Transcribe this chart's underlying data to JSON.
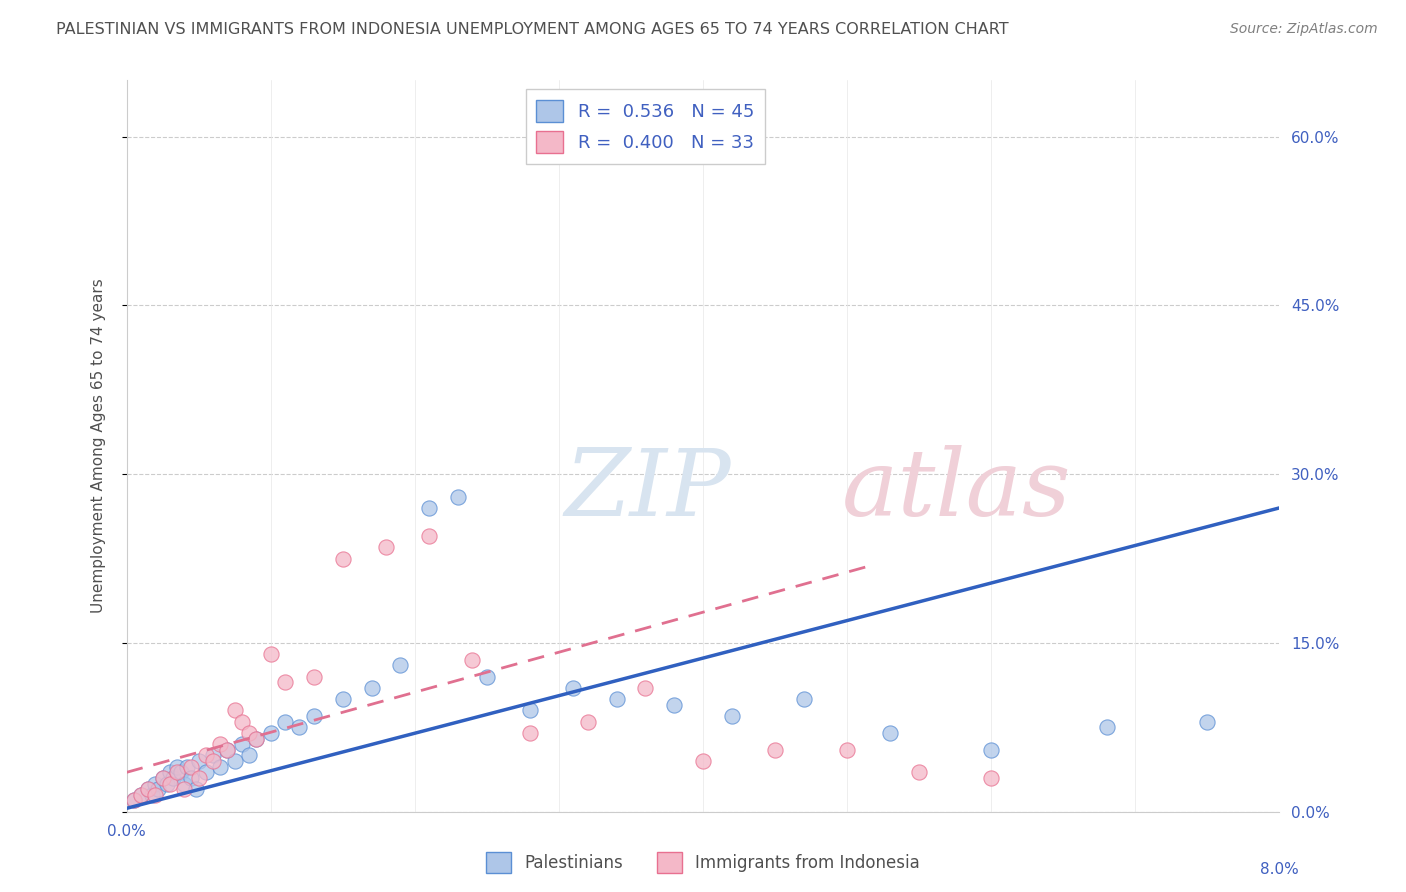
{
  "title": "PALESTINIAN VS IMMIGRANTS FROM INDONESIA UNEMPLOYMENT AMONG AGES 65 TO 74 YEARS CORRELATION CHART",
  "source": "Source: ZipAtlas.com",
  "ylabel": "Unemployment Among Ages 65 to 74 years",
  "y_ticks": [
    "0.0%",
    "15.0%",
    "30.0%",
    "45.0%",
    "60.0%"
  ],
  "y_tick_vals": [
    0.0,
    15.0,
    30.0,
    45.0,
    60.0
  ],
  "x_range": [
    0.0,
    8.0
  ],
  "y_range": [
    0.0,
    65.0
  ],
  "r_blue": 0.536,
  "n_blue": 45,
  "r_pink": 0.4,
  "n_pink": 33,
  "blue_face_color": "#aec6e8",
  "pink_face_color": "#f4b8c8",
  "blue_edge_color": "#5b8fd4",
  "pink_edge_color": "#e87090",
  "blue_line_color": "#3060c0",
  "pink_line_color": "#e07090",
  "title_color": "#505050",
  "source_color": "#808080",
  "legend_text_color": "#4060c0",
  "watermark_color": "#d8e4f0",
  "watermark_pink": "#f0d0d8",
  "legend_label_blue": "Palestinians",
  "legend_label_pink": "Immigrants from Indonesia",
  "blue_scatter_x": [
    0.05,
    0.1,
    0.15,
    0.18,
    0.2,
    0.22,
    0.25,
    0.28,
    0.3,
    0.32,
    0.35,
    0.38,
    0.4,
    0.42,
    0.45,
    0.48,
    0.5,
    0.55,
    0.6,
    0.65,
    0.7,
    0.75,
    0.8,
    0.85,
    0.9,
    1.0,
    1.1,
    1.2,
    1.3,
    1.5,
    1.7,
    1.9,
    2.1,
    2.3,
    2.5,
    2.8,
    3.1,
    3.4,
    3.8,
    4.2,
    4.7,
    5.3,
    6.0,
    6.8,
    7.5
  ],
  "blue_scatter_y": [
    1.0,
    1.5,
    2.0,
    1.5,
    2.5,
    2.0,
    3.0,
    2.5,
    3.5,
    3.0,
    4.0,
    3.5,
    2.5,
    4.0,
    3.0,
    2.0,
    4.5,
    3.5,
    5.0,
    4.0,
    5.5,
    4.5,
    6.0,
    5.0,
    6.5,
    7.0,
    8.0,
    7.5,
    8.5,
    10.0,
    11.0,
    13.0,
    27.0,
    28.0,
    12.0,
    9.0,
    11.0,
    10.0,
    9.5,
    8.5,
    10.0,
    7.0,
    5.5,
    7.5,
    8.0
  ],
  "pink_scatter_x": [
    0.05,
    0.1,
    0.15,
    0.2,
    0.25,
    0.3,
    0.35,
    0.4,
    0.45,
    0.5,
    0.55,
    0.6,
    0.65,
    0.7,
    0.75,
    0.8,
    0.85,
    0.9,
    1.0,
    1.1,
    1.3,
    1.5,
    1.8,
    2.1,
    2.4,
    2.8,
    3.2,
    3.6,
    4.0,
    4.5,
    5.0,
    5.5,
    6.0
  ],
  "pink_scatter_y": [
    1.0,
    1.5,
    2.0,
    1.5,
    3.0,
    2.5,
    3.5,
    2.0,
    4.0,
    3.0,
    5.0,
    4.5,
    6.0,
    5.5,
    9.0,
    8.0,
    7.0,
    6.5,
    14.0,
    11.5,
    12.0,
    22.5,
    23.5,
    24.5,
    13.5,
    7.0,
    8.0,
    11.0,
    4.5,
    5.5,
    5.5,
    3.5,
    3.0
  ],
  "blue_trend_x0": 0.0,
  "blue_trend_y0": 0.3,
  "blue_trend_x1": 8.0,
  "blue_trend_y1": 27.0,
  "pink_trend_x0": 0.0,
  "pink_trend_y0": 3.5,
  "pink_trend_x1": 5.2,
  "pink_trend_y1": 22.0
}
